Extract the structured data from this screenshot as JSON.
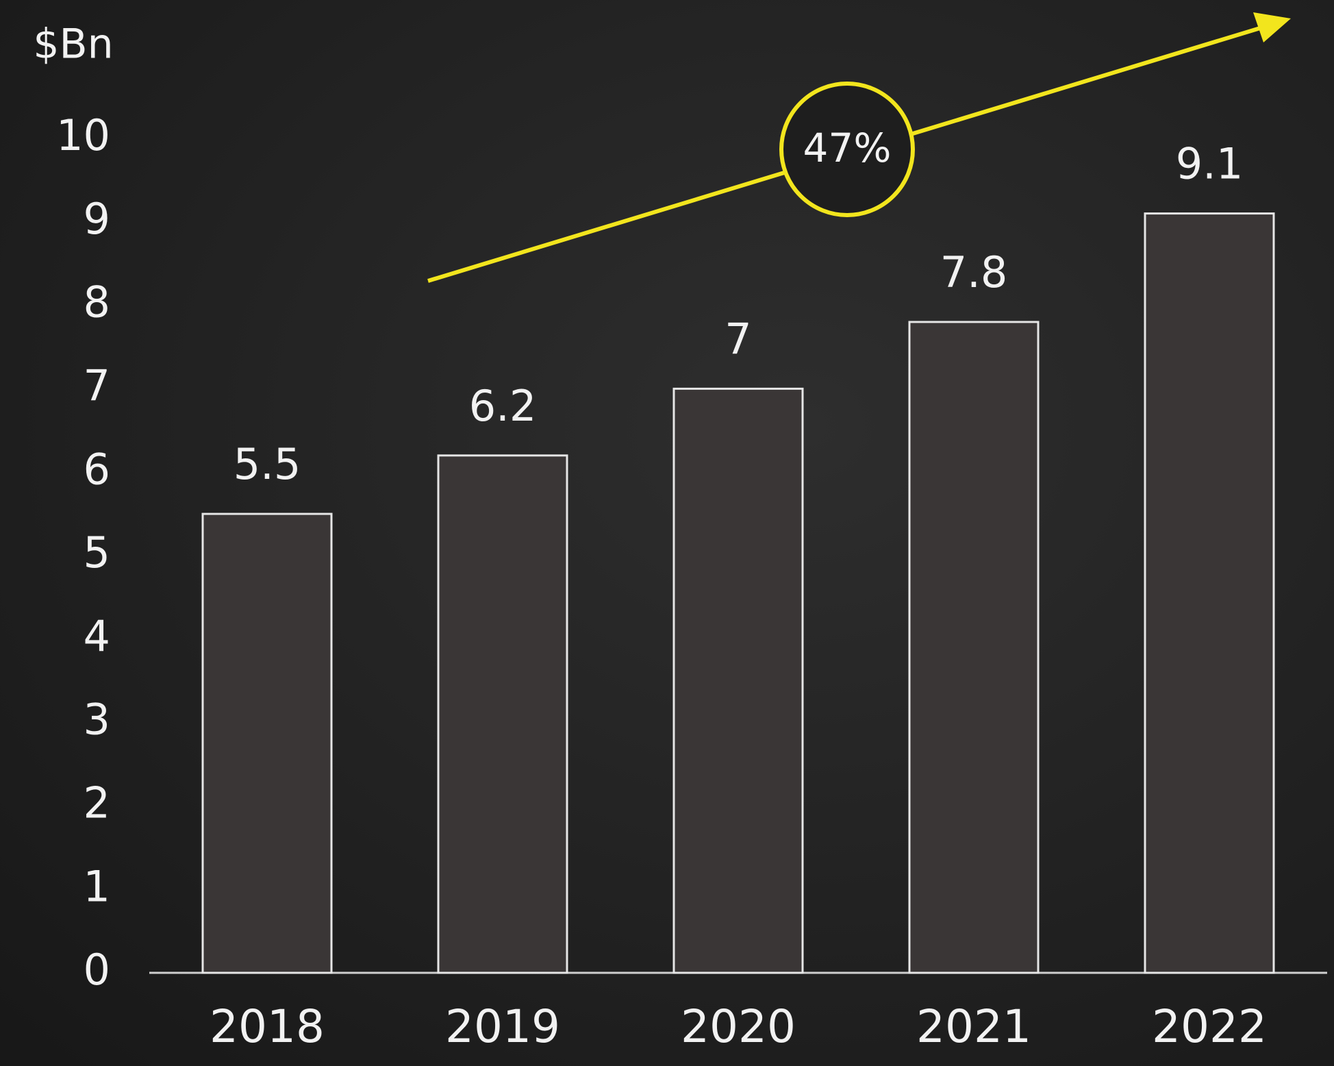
{
  "chart_data": {
    "type": "bar",
    "y_label": "$Bn",
    "annotation": "47%",
    "categories": [
      "2018",
      "2019",
      "2020",
      "2021",
      "2022"
    ],
    "values": [
      5.5,
      6.2,
      7,
      7.8,
      9.1
    ],
    "color": "#3a3636",
    "ylim": [
      0,
      10
    ],
    "yticks": [
      0,
      1,
      2,
      3,
      4,
      5,
      6,
      7,
      8,
      9,
      10
    ],
    "grid": false
  }
}
